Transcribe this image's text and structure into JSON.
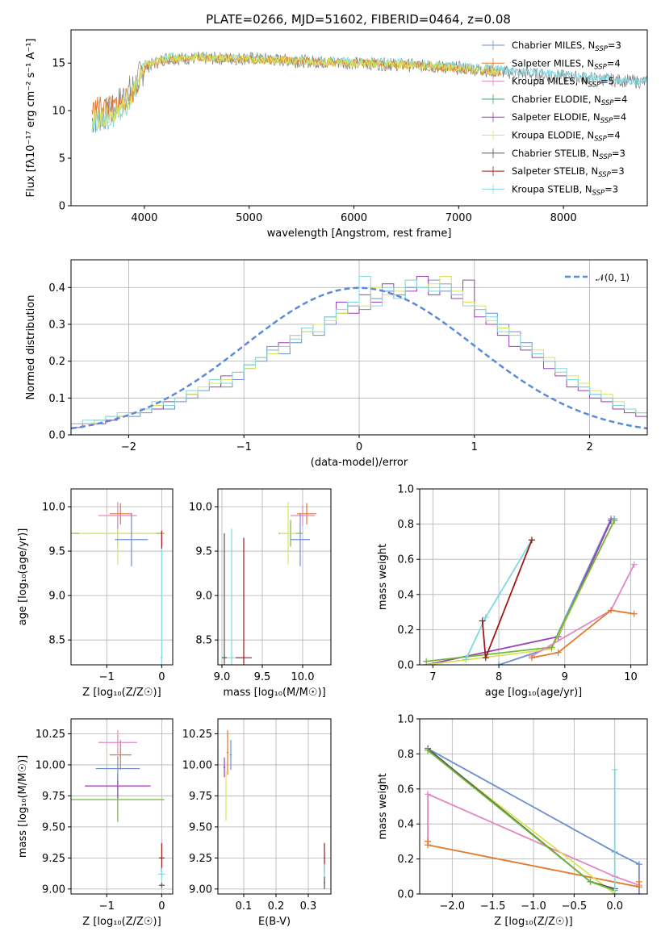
{
  "figure": {
    "title": "PLATE=0266, MJD=51602, FIBERID=0464, z=0.08"
  },
  "chart_data": [
    {
      "id": "spectrum",
      "type": "line",
      "xlabel": "wavelength [Angstrom, rest frame]",
      "ylabel": "Flux [fλ10⁻¹⁷ erg cm⁻² s⁻¹ A⁻¹]",
      "xlim": [
        3300,
        8800
      ],
      "ylim": [
        0,
        18.5
      ],
      "xticks": [
        4000,
        5000,
        6000,
        7000,
        8000
      ],
      "yticks": [
        0,
        5,
        10,
        15
      ],
      "grid": false,
      "legend_position": "right",
      "legend": [
        {
          "label": "Chabrier MILES, N",
          "sub": "SSP",
          "suffix": "=3",
          "color": "#6d8fd1"
        },
        {
          "label": "Salpeter MILES, N",
          "sub": "SSP",
          "suffix": "=4",
          "color": "#e07a2c"
        },
        {
          "label": "Kroupa MILES, N",
          "sub": "SSP",
          "suffix": "=5",
          "color": "#e586c4"
        },
        {
          "label": "Chabrier ELODIE, N",
          "sub": "SSP",
          "suffix": "=4",
          "color": "#4a9a6b"
        },
        {
          "label": "Salpeter ELODIE, N",
          "sub": "SSP",
          "suffix": "=4",
          "color": "#9b3fb5"
        },
        {
          "label": "Kroupa ELODIE, N",
          "sub": "SSP",
          "suffix": "=4",
          "color": "#d9e35a"
        },
        {
          "label": "Chabrier STELIB, N",
          "sub": "SSP",
          "suffix": "=3",
          "color": "#555555"
        },
        {
          "label": "Salpeter STELIB, N",
          "sub": "SSP",
          "suffix": "=3",
          "color": "#a01818"
        },
        {
          "label": "Kroupa STELIB, N",
          "sub": "SSP",
          "suffix": "=3",
          "color": "#7fd8e0"
        }
      ],
      "series": [
        {
          "color": "#808080",
          "x": [
            3500,
            3600,
            3700,
            3800,
            3900,
            4000,
            4200,
            4500,
            5000,
            5500,
            6000,
            6500,
            7000,
            7500,
            8000,
            8500,
            8800
          ],
          "y": [
            9,
            9.5,
            10,
            11.5,
            12.5,
            14.5,
            15.5,
            15.5,
            15.5,
            15.2,
            15.0,
            14.8,
            14.5,
            14.0,
            13.6,
            13.2,
            13.0
          ]
        },
        {
          "color": "#7fd8e0",
          "x": [
            3500,
            3600,
            3700,
            3800,
            3900,
            4000,
            4200,
            4500,
            5000,
            5500,
            6000,
            6500,
            7000,
            7500,
            8000,
            8500,
            8800
          ],
          "y": [
            8.8,
            9.0,
            9.2,
            10.0,
            11.8,
            14.8,
            15.6,
            15.7,
            15.5,
            15.3,
            15.2,
            15.0,
            14.7,
            14.2,
            13.8,
            13.3,
            13.1
          ]
        },
        {
          "color": "#e07a2c",
          "x": [
            3500,
            3550,
            3700,
            3800,
            3900,
            4000,
            4200,
            4500,
            5000,
            5500,
            6000,
            6500,
            7000,
            7400
          ],
          "y": [
            10.0,
            10.5,
            10.5,
            11.0,
            12.0,
            14.5,
            15.4,
            15.6,
            15.4,
            15.2,
            15.0,
            14.8,
            14.4,
            14.0
          ]
        },
        {
          "color": "#d9e35a",
          "x": [
            3500,
            3600,
            3700,
            3800,
            3900,
            4000,
            4200,
            4500,
            5000,
            5500,
            6000,
            6500,
            7000,
            7400
          ],
          "y": [
            9.0,
            9.2,
            9.6,
            10.6,
            12.0,
            14.7,
            15.5,
            15.6,
            15.4,
            15.2,
            15.0,
            14.8,
            14.5,
            14.1
          ]
        }
      ]
    },
    {
      "id": "residuals",
      "type": "bar",
      "xlabel": "(data-model)/error",
      "ylabel": "Normed distribution",
      "xlim": [
        -2.5,
        2.5
      ],
      "ylim": [
        0,
        0.475
      ],
      "xticks": [
        -2,
        -1,
        0,
        1,
        2
      ],
      "yticks": [
        0.0,
        0.1,
        0.2,
        0.3,
        0.4
      ],
      "grid": true,
      "legend_position": "top-right",
      "legend": [
        {
          "label": "𝒩(0, 1)",
          "color": "#5b8bd8"
        }
      ],
      "bin_width": 0.1,
      "bin_start": -2.5,
      "series": [
        {
          "color": "#6d8fd1",
          "values": [
            0.03,
            0.03,
            0.04,
            0.04,
            0.05,
            0.05,
            0.06,
            0.08,
            0.07,
            0.09,
            0.1,
            0.12,
            0.14,
            0.13,
            0.15,
            0.18,
            0.2,
            0.24,
            0.22,
            0.25,
            0.28,
            0.27,
            0.3,
            0.33,
            0.35,
            0.34,
            0.37,
            0.39,
            0.38,
            0.4,
            0.4,
            0.42,
            0.39,
            0.38,
            0.36,
            0.34,
            0.33,
            0.3,
            0.28,
            0.25,
            0.22,
            0.2,
            0.17,
            0.15,
            0.13,
            0.11,
            0.1,
            0.08,
            0.07,
            0.06
          ]
        },
        {
          "color": "#9b3fb5",
          "values": [
            0.02,
            0.03,
            0.03,
            0.04,
            0.05,
            0.06,
            0.07,
            0.07,
            0.09,
            0.1,
            0.11,
            0.12,
            0.13,
            0.16,
            0.17,
            0.19,
            0.21,
            0.23,
            0.25,
            0.27,
            0.29,
            0.3,
            0.32,
            0.36,
            0.33,
            0.38,
            0.36,
            0.41,
            0.37,
            0.39,
            0.43,
            0.38,
            0.41,
            0.37,
            0.42,
            0.32,
            0.3,
            0.27,
            0.24,
            0.23,
            0.21,
            0.18,
            0.16,
            0.13,
            0.12,
            0.1,
            0.09,
            0.07,
            0.06,
            0.05
          ]
        },
        {
          "color": "#d9e35a",
          "values": [
            0.03,
            0.03,
            0.04,
            0.05,
            0.05,
            0.06,
            0.07,
            0.08,
            0.08,
            0.1,
            0.11,
            0.13,
            0.14,
            0.15,
            0.17,
            0.18,
            0.21,
            0.22,
            0.24,
            0.27,
            0.28,
            0.3,
            0.31,
            0.33,
            0.36,
            0.35,
            0.4,
            0.38,
            0.39,
            0.42,
            0.4,
            0.41,
            0.43,
            0.39,
            0.36,
            0.35,
            0.31,
            0.29,
            0.27,
            0.24,
            0.23,
            0.21,
            0.17,
            0.16,
            0.14,
            0.12,
            0.11,
            0.09,
            0.07,
            0.06
          ]
        },
        {
          "color": "#7fd8e0",
          "values": [
            0.03,
            0.04,
            0.04,
            0.05,
            0.06,
            0.06,
            0.07,
            0.09,
            0.08,
            0.1,
            0.12,
            0.12,
            0.15,
            0.14,
            0.17,
            0.19,
            0.21,
            0.23,
            0.24,
            0.26,
            0.29,
            0.28,
            0.32,
            0.34,
            0.36,
            0.43,
            0.35,
            0.4,
            0.37,
            0.42,
            0.4,
            0.39,
            0.41,
            0.38,
            0.35,
            0.34,
            0.32,
            0.28,
            0.27,
            0.24,
            0.22,
            0.2,
            0.18,
            0.15,
            0.13,
            0.11,
            0.1,
            0.08,
            0.07,
            0.06
          ]
        }
      ],
      "curve": {
        "label": "𝒩(0, 1)",
        "mean": 0,
        "sigma": 1,
        "color": "#5b8bd8"
      }
    },
    {
      "id": "age_vs_Z",
      "type": "scatter",
      "xlabel": "Z [log₁₀(Z/Z☉)]",
      "ylabel": "age  [log₁₀(age/yr)]",
      "xlim": [
        -1.65,
        0.2
      ],
      "ylim": [
        8.22,
        10.2
      ],
      "xticks": [
        -1,
        0
      ],
      "yticks": [
        8.5,
        9.0,
        9.5,
        10.0
      ],
      "grid": true,
      "points": [
        {
          "x": -0.8,
          "y": 9.7,
          "xerr": 0.85,
          "yerr": 0.15,
          "color": "#70b83a"
        },
        {
          "x": -0.8,
          "y": 9.7,
          "xerr": 0.7,
          "yerr": 0.35,
          "color": "#d9e35a"
        },
        {
          "x": -0.75,
          "y": 9.92,
          "xerr": 0.2,
          "yerr": 0.12,
          "color": "#e07a2c"
        },
        {
          "x": -0.8,
          "y": 9.9,
          "xerr": 0.35,
          "yerr": 0.15,
          "color": "#e586c4"
        },
        {
          "x": -0.55,
          "y": 9.63,
          "xerr": 0.3,
          "yerr": 0.3,
          "color": "#6d8fd1"
        },
        {
          "x": 0.0,
          "y": 8.3,
          "xerr": 0.02,
          "yerr": 1.4,
          "color": "#7fd8e0"
        },
        {
          "x": 0.0,
          "y": 9.63,
          "xerr": 0.01,
          "yerr": 0.1,
          "color": "#a01818"
        }
      ]
    },
    {
      "id": "age_vs_mass",
      "type": "scatter",
      "xlabel": "mass [log₁₀(M/M☉)]",
      "ylabel": "",
      "xlim": [
        8.95,
        10.35
      ],
      "ylim": [
        8.22,
        10.2
      ],
      "xticks": [
        9.0,
        9.5,
        10.0
      ],
      "yticks": [
        8.5,
        9.0,
        9.5,
        10.0
      ],
      "grid": true,
      "points": [
        {
          "x": 9.85,
          "y": 9.7,
          "xerr": 0.15,
          "yerr": 0.15,
          "color": "#70b83a"
        },
        {
          "x": 9.82,
          "y": 9.7,
          "xerr": 0.1,
          "yerr": 0.35,
          "color": "#d9e35a"
        },
        {
          "x": 10.05,
          "y": 9.92,
          "xerr": 0.12,
          "yerr": 0.12,
          "color": "#e07a2c"
        },
        {
          "x": 10.0,
          "y": 9.9,
          "xerr": 0.15,
          "yerr": 0.12,
          "color": "#e586c4"
        },
        {
          "x": 9.97,
          "y": 9.63,
          "xerr": 0.12,
          "yerr": 0.3,
          "color": "#6d8fd1"
        },
        {
          "x": 9.12,
          "y": 8.3,
          "xerr": 0.1,
          "yerr": 1.45,
          "color": "#7fd8e0"
        },
        {
          "x": 9.03,
          "y": 8.3,
          "xerr": 0.03,
          "yerr": 1.4,
          "color": "#555555"
        },
        {
          "x": 9.27,
          "y": 8.3,
          "xerr": 0.1,
          "yerr": 1.35,
          "color": "#a01818"
        }
      ]
    },
    {
      "id": "massweight_vs_age",
      "type": "line",
      "xlabel": "age  [log₁₀(age/yr)]",
      "ylabel": "mass weight",
      "xlim": [
        6.8,
        10.25
      ],
      "ylim": [
        0.0,
        1.0
      ],
      "xticks": [
        7,
        8,
        9,
        10
      ],
      "yticks": [
        0.0,
        0.2,
        0.4,
        0.6,
        0.8,
        1.0
      ],
      "grid": true,
      "series": [
        {
          "color": "#6d8fd1",
          "x": [
            8.0,
            8.8,
            9.7,
            9.75
          ],
          "y": [
            0.0,
            0.1,
            0.83,
            0.83
          ]
        },
        {
          "color": "#9b3fb5",
          "x": [
            6.9,
            8.9,
            9.7
          ],
          "y": [
            0.0,
            0.16,
            0.82
          ]
        },
        {
          "color": "#d9e35a",
          "x": [
            6.9,
            8.8,
            9.75
          ],
          "y": [
            0.0,
            0.09,
            0.82
          ]
        },
        {
          "color": "#70b83a",
          "x": [
            6.9,
            8.8,
            9.75
          ],
          "y": [
            0.02,
            0.1,
            0.82
          ]
        },
        {
          "color": "#e586c4",
          "x": [
            8.5,
            9.7,
            10.05
          ],
          "y": [
            0.05,
            0.31,
            0.57
          ]
        },
        {
          "color": "#e07a2c",
          "x": [
            8.5,
            8.9,
            9.7,
            10.05
          ],
          "y": [
            0.04,
            0.07,
            0.31,
            0.29
          ]
        },
        {
          "color": "#7fd8e0",
          "x": [
            7.5,
            7.8,
            8.5
          ],
          "y": [
            0.03,
            0.27,
            0.71
          ]
        },
        {
          "color": "#a01818",
          "x": [
            7.75,
            7.8,
            8.5
          ],
          "y": [
            0.25,
            0.04,
            0.71
          ]
        }
      ]
    },
    {
      "id": "mass_vs_Z",
      "type": "scatter",
      "xlabel": "Z [log₁₀(Z/Z☉)]",
      "ylabel": "mass [log₁₀(M/M☉)]",
      "xlim": [
        -1.65,
        0.2
      ],
      "ylim": [
        8.96,
        10.37
      ],
      "xticks": [
        -1,
        0
      ],
      "yticks": [
        9.0,
        9.25,
        9.5,
        9.75,
        10.0,
        10.25
      ],
      "grid": true,
      "points": [
        {
          "x": -0.8,
          "y": 9.72,
          "xerr": 0.85,
          "yerr": 0.18,
          "color": "#70b83a"
        },
        {
          "x": -0.8,
          "y": 9.83,
          "xerr": 0.6,
          "yerr": 0.1,
          "color": "#9b3fb5"
        },
        {
          "x": -0.8,
          "y": 9.97,
          "xerr": 0.4,
          "yerr": 0.1,
          "color": "#6d8fd1"
        },
        {
          "x": -0.75,
          "y": 10.08,
          "xerr": 0.2,
          "yerr": 0.12,
          "color": "#e07a2c"
        },
        {
          "x": -0.8,
          "y": 10.18,
          "xerr": 0.35,
          "yerr": 0.1,
          "color": "#e586c4"
        },
        {
          "x": 0.0,
          "y": 9.25,
          "xerr": 0.05,
          "yerr": 0.12,
          "color": "#a01818"
        },
        {
          "x": 0.0,
          "y": 9.12,
          "xerr": 0.06,
          "yerr": 0.05,
          "color": "#7fd8e0"
        },
        {
          "x": 0.0,
          "y": 9.03,
          "xerr": 0.05,
          "yerr": 0.02,
          "color": "#555555"
        }
      ]
    },
    {
      "id": "mass_vs_EBV",
      "type": "scatter",
      "xlabel": "E(B-V)",
      "ylabel": "",
      "xlim": [
        0.02,
        0.37
      ],
      "ylim": [
        8.96,
        10.37
      ],
      "xticks": [
        0.1,
        0.2,
        0.3
      ],
      "yticks": [
        9.0,
        9.25,
        9.5,
        9.75,
        10.0,
        10.25
      ],
      "grid": true,
      "points": [
        {
          "x": 0.045,
          "y": 9.75,
          "xerr": 0.003,
          "yerr": 0.2,
          "color": "#d9e35a"
        },
        {
          "x": 0.05,
          "y": 10.1,
          "xerr": 0.003,
          "yerr": 0.18,
          "color": "#e07a2c"
        },
        {
          "x": 0.06,
          "y": 10.08,
          "xerr": 0.003,
          "yerr": 0.12,
          "color": "#6d8fd1"
        },
        {
          "x": 0.04,
          "y": 9.98,
          "xerr": 0.003,
          "yerr": 0.08,
          "color": "#9b3fb5"
        },
        {
          "x": 0.35,
          "y": 9.25,
          "xerr": 0.002,
          "yerr": 0.12,
          "color": "#a01818"
        },
        {
          "x": 0.35,
          "y": 9.12,
          "xerr": 0.002,
          "yerr": 0.08,
          "color": "#7fd8e0"
        },
        {
          "x": 0.35,
          "y": 9.05,
          "xerr": 0.002,
          "yerr": 0.05,
          "color": "#555555"
        }
      ]
    },
    {
      "id": "massweight_vs_Z",
      "type": "line",
      "xlabel": "Z [log₁₀(Z/Z☉)]",
      "ylabel": "mass weight",
      "xlim": [
        -2.4,
        0.4
      ],
      "ylim": [
        0.0,
        1.0
      ],
      "xticks": [
        -2.0,
        -1.5,
        -1.0,
        -0.5,
        0.0
      ],
      "yticks": [
        0.0,
        0.2,
        0.4,
        0.6,
        0.8,
        1.0
      ],
      "grid": true,
      "series": [
        {
          "color": "#6d8fd1",
          "x": [
            -2.3,
            0.0,
            0.3,
            0.3
          ],
          "y": [
            0.83,
            0.24,
            0.17,
            0.0
          ]
        },
        {
          "color": "#e586c4",
          "x": [
            -2.3,
            -2.3,
            0.0,
            0.3
          ],
          "y": [
            0.3,
            0.57,
            0.1,
            0.05
          ]
        },
        {
          "color": "#e07a2c",
          "x": [
            -2.3,
            -2.3,
            0.3,
            0.3
          ],
          "y": [
            0.3,
            0.28,
            0.04,
            0.07
          ]
        },
        {
          "color": "#d9e35a",
          "x": [
            -2.3,
            0.0
          ],
          "y": [
            0.82,
            0.0
          ]
        },
        {
          "color": "#555555",
          "x": [
            -2.3,
            -0.3,
            0.0
          ],
          "y": [
            0.83,
            0.07,
            0.03
          ]
        },
        {
          "color": "#70b83a",
          "x": [
            -2.3,
            -0.3,
            0.0
          ],
          "y": [
            0.82,
            0.07,
            0.02
          ]
        },
        {
          "color": "#7fd8e0",
          "x": [
            0.0,
            0.0
          ],
          "y": [
            0.0,
            0.71
          ]
        }
      ]
    }
  ]
}
